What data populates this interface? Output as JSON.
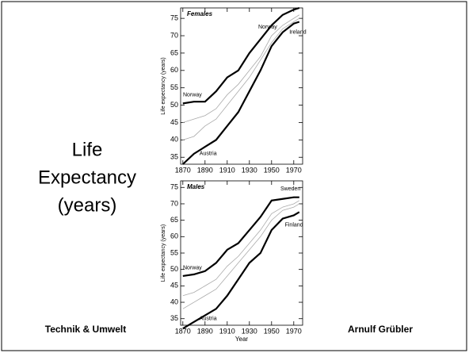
{
  "slide": {
    "heading": [
      "Life",
      "Expectancy",
      "(years)"
    ],
    "footer_left": "Technik & Umwelt",
    "footer_right": "Arnulf Grübler"
  },
  "chart_data": [
    {
      "type": "line",
      "title": "Females",
      "ylabel": "Life expectancy (years)",
      "x": [
        1870,
        1880,
        1890,
        1900,
        1910,
        1920,
        1930,
        1940,
        1950,
        1960,
        1970,
        1975
      ],
      "xlim": [
        1868,
        1978
      ],
      "xticks": [
        1870,
        1890,
        1910,
        1930,
        1950,
        1970
      ],
      "ylim": [
        33,
        78
      ],
      "yticks": [
        35,
        40,
        45,
        50,
        55,
        60,
        65,
        70,
        75
      ],
      "series": [
        {
          "color": "#aaaaaa",
          "values": [
            45,
            46,
            47,
            49,
            53,
            56,
            60,
            64,
            70,
            73,
            75,
            76
          ]
        },
        {
          "color": "#aaaaaa",
          "values": [
            40,
            41,
            44,
            46,
            50,
            54,
            58,
            63,
            68,
            72,
            74,
            75
          ]
        },
        {
          "name": "Norway",
          "color": "#000000",
          "values": [
            50.5,
            51,
            51,
            54,
            58,
            60,
            65,
            69,
            73,
            76,
            77.5,
            78
          ]
        },
        {
          "name": "Austria",
          "color": "#000000",
          "values": [
            33,
            36,
            38,
            40,
            44,
            48,
            54,
            60,
            67,
            71,
            73.5,
            74
          ]
        }
      ],
      "annotations": [
        "Norway",
        "Ireland"
      ]
    },
    {
      "type": "line",
      "title": "Males",
      "ylabel": "Life expectancy (years)",
      "xlabel": "Year",
      "x": [
        1870,
        1880,
        1890,
        1900,
        1910,
        1920,
        1930,
        1940,
        1950,
        1960,
        1970,
        1975
      ],
      "xlim": [
        1868,
        1978
      ],
      "xticks": [
        1870,
        1890,
        1910,
        1930,
        1950,
        1970
      ],
      "ylim": [
        33,
        77
      ],
      "yticks": [
        35,
        40,
        45,
        50,
        55,
        60,
        65,
        70,
        75
      ],
      "series": [
        {
          "color": "#aaaaaa",
          "values": [
            42,
            43,
            45,
            47,
            51,
            54,
            58,
            62,
            67,
            69,
            70,
            71
          ]
        },
        {
          "color": "#aaaaaa",
          "values": [
            38,
            40,
            42,
            44,
            48,
            52,
            56,
            60,
            65,
            68,
            69,
            70
          ]
        },
        {
          "name": "Norway",
          "color": "#000000",
          "values": [
            48,
            48.5,
            49.5,
            52,
            56,
            58,
            62,
            66,
            71,
            71.5,
            72,
            72
          ]
        },
        {
          "name": "Austria",
          "color": "#000000",
          "values": [
            32,
            34,
            36,
            38,
            42,
            47,
            52,
            55,
            62,
            65.5,
            66.5,
            67.5
          ]
        }
      ],
      "annotations": [
        "Sweden",
        "Finland"
      ]
    }
  ]
}
